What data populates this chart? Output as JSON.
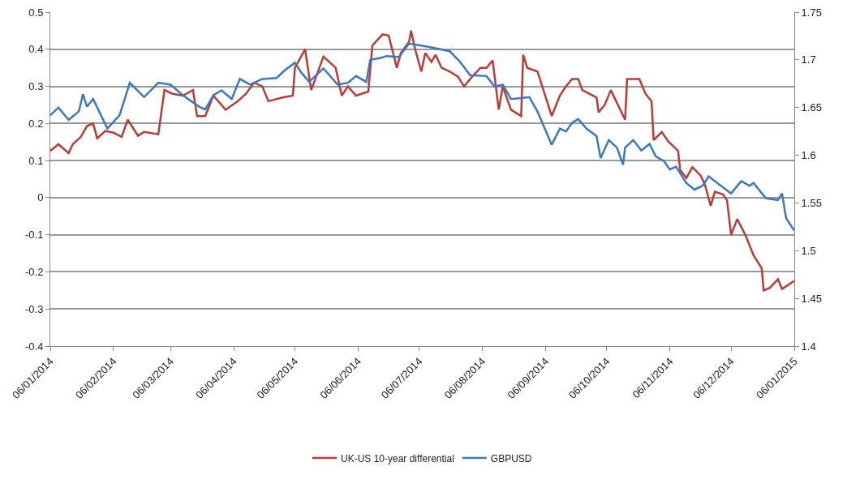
{
  "chart_data": {
    "type": "line",
    "xlim": [
      "2014-01-06",
      "2015-01-06"
    ],
    "xticks": [
      {
        "value": "2014-01-06",
        "label": "06/01/2014"
      },
      {
        "value": "2014-02-06",
        "label": "06/02/2014"
      },
      {
        "value": "2014-03-06",
        "label": "06/03/2014"
      },
      {
        "value": "2014-04-06",
        "label": "06/04/2014"
      },
      {
        "value": "2014-05-06",
        "label": "06/05/2014"
      },
      {
        "value": "2014-06-06",
        "label": "06/06/2014"
      },
      {
        "value": "2014-07-06",
        "label": "06/07/2014"
      },
      {
        "value": "2014-08-06",
        "label": "06/08/2014"
      },
      {
        "value": "2014-09-06",
        "label": "06/09/2014"
      },
      {
        "value": "2014-10-06",
        "label": "06/10/2014"
      },
      {
        "value": "2014-11-06",
        "label": "06/11/2014"
      },
      {
        "value": "2014-12-06",
        "label": "06/12/2014"
      },
      {
        "value": "2015-01-06",
        "label": "06/01/2015"
      }
    ],
    "ylim": [
      -0.4,
      0.5
    ],
    "yticks": [
      -0.4,
      -0.3,
      -0.2,
      -0.1,
      0,
      0.1,
      0.2,
      0.3,
      0.4,
      0.5
    ],
    "y2lim": [
      1.4,
      1.75
    ],
    "y2ticks": [
      1.4,
      1.45,
      1.5,
      1.55,
      1.6,
      1.65,
      1.7,
      1.75
    ],
    "grid": "y",
    "legend": "bottom",
    "marker": "none",
    "line_style": "solid",
    "series": [
      {
        "name": "UK-US 10-year differential",
        "color": "#be3a34",
        "x": [
          "2014-01-06",
          "2014-01-10",
          "2014-01-15",
          "2014-01-17",
          "2014-01-21",
          "2014-01-24",
          "2014-01-27",
          "2014-01-29",
          "2014-02-02",
          "2014-02-06",
          "2014-02-10",
          "2014-02-13",
          "2014-02-18",
          "2014-02-21",
          "2014-02-28",
          "2014-03-03",
          "2014-03-07",
          "2014-03-12",
          "2014-03-17",
          "2014-03-19",
          "2014-03-23",
          "2014-03-27",
          "2014-04-02",
          "2014-04-08",
          "2014-04-12",
          "2014-04-16",
          "2014-04-20",
          "2014-04-23",
          "2014-04-30",
          "2014-05-05",
          "2014-05-06",
          "2014-05-11",
          "2014-05-14",
          "2014-05-20",
          "2014-05-26",
          "2014-05-29",
          "2014-06-01",
          "2014-06-05",
          "2014-06-11",
          "2014-06-13",
          "2014-06-18",
          "2014-06-21",
          "2014-06-25",
          "2014-06-27",
          "2014-07-01",
          "2014-07-02",
          "2014-07-04",
          "2014-07-07",
          "2014-07-09",
          "2014-07-12",
          "2014-07-14",
          "2014-07-17",
          "2014-07-21",
          "2014-07-25",
          "2014-07-28",
          "2014-08-01",
          "2014-08-05",
          "2014-08-08",
          "2014-08-11",
          "2014-08-14",
          "2014-08-16",
          "2014-08-20",
          "2014-08-25",
          "2014-08-26",
          "2014-08-28",
          "2014-09-02",
          "2014-09-09",
          "2014-09-13",
          "2014-09-16",
          "2014-09-19",
          "2014-09-22",
          "2014-09-24",
          "2014-10-01",
          "2014-10-02",
          "2014-10-05",
          "2014-10-08",
          "2014-10-15",
          "2014-10-16",
          "2014-10-22",
          "2014-10-25",
          "2014-10-28",
          "2014-10-29",
          "2014-11-02",
          "2014-11-05",
          "2014-11-10",
          "2014-11-11",
          "2014-11-14",
          "2014-11-17",
          "2014-11-21",
          "2014-11-23",
          "2014-11-26",
          "2014-11-28",
          "2014-12-02",
          "2014-12-04",
          "2014-12-06",
          "2014-12-09",
          "2014-12-13",
          "2014-12-17",
          "2014-12-21",
          "2014-12-22",
          "2014-12-25",
          "2014-12-29",
          "2014-12-31",
          "2015-01-06"
        ],
        "values": [
          0.126,
          0.144,
          0.12,
          0.144,
          0.164,
          0.193,
          0.2,
          0.16,
          0.18,
          0.175,
          0.164,
          0.21,
          0.167,
          0.177,
          0.171,
          0.29,
          0.28,
          0.275,
          0.29,
          0.22,
          0.22,
          0.275,
          0.237,
          0.26,
          0.28,
          0.31,
          0.3,
          0.26,
          0.27,
          0.275,
          0.35,
          0.4,
          0.29,
          0.38,
          0.35,
          0.275,
          0.3,
          0.275,
          0.286,
          0.41,
          0.44,
          0.437,
          0.35,
          0.39,
          0.42,
          0.45,
          0.4,
          0.34,
          0.39,
          0.366,
          0.385,
          0.35,
          0.34,
          0.326,
          0.3,
          0.326,
          0.35,
          0.35,
          0.37,
          0.237,
          0.3,
          0.237,
          0.22,
          0.385,
          0.35,
          0.34,
          0.22,
          0.275,
          0.3,
          0.32,
          0.32,
          0.29,
          0.27,
          0.23,
          0.25,
          0.29,
          0.21,
          0.32,
          0.32,
          0.28,
          0.26,
          0.155,
          0.177,
          0.153,
          0.126,
          0.075,
          0.053,
          0.082,
          0.06,
          0.038,
          -0.022,
          0.016,
          0.009,
          -0.007,
          -0.1,
          -0.058,
          -0.1,
          -0.155,
          -0.19,
          -0.25,
          -0.243,
          -0.22,
          -0.246,
          -0.224
        ]
      },
      {
        "name": "GBPUSD",
        "color": "#3a78c2",
        "axis": "y2",
        "x": [
          "2014-01-06",
          "2014-01-10",
          "2014-01-15",
          "2014-01-20",
          "2014-01-22",
          "2014-01-24",
          "2014-01-27",
          "2014-02-03",
          "2014-02-09",
          "2014-02-14",
          "2014-02-21",
          "2014-02-28",
          "2014-03-06",
          "2014-03-12",
          "2014-03-20",
          "2014-03-23",
          "2014-03-27",
          "2014-03-31",
          "2014-04-05",
          "2014-04-09",
          "2014-04-14",
          "2014-04-20",
          "2014-04-27",
          "2014-05-01",
          "2014-05-06",
          "2014-05-09",
          "2014-05-13",
          "2014-05-20",
          "2014-05-27",
          "2014-06-01",
          "2014-06-05",
          "2014-06-10",
          "2014-06-12",
          "2014-06-17",
          "2014-06-20",
          "2014-06-26",
          "2014-07-01",
          "2014-07-07",
          "2014-07-12",
          "2014-07-21",
          "2014-07-26",
          "2014-07-31",
          "2014-08-08",
          "2014-08-12",
          "2014-08-16",
          "2014-08-20",
          "2014-08-25",
          "2014-08-29",
          "2014-09-02",
          "2014-09-09",
          "2014-09-13",
          "2014-09-16",
          "2014-09-19",
          "2014-09-22",
          "2014-09-26",
          "2014-10-01",
          "2014-10-03",
          "2014-10-07",
          "2014-10-11",
          "2014-10-14",
          "2014-10-15",
          "2014-10-19",
          "2014-10-23",
          "2014-10-27",
          "2014-10-30",
          "2014-11-03",
          "2014-11-06",
          "2014-11-09",
          "2014-11-14",
          "2014-11-18",
          "2014-11-22",
          "2014-11-25",
          "2014-12-01",
          "2014-12-06",
          "2014-12-11",
          "2014-12-15",
          "2014-12-17",
          "2014-12-23",
          "2014-12-29",
          "2014-12-31",
          "2015-01-02",
          "2015-01-06"
        ],
        "values": [
          1.642,
          1.65,
          1.637,
          1.646,
          1.664,
          1.651,
          1.659,
          1.628,
          1.642,
          1.676,
          1.661,
          1.676,
          1.674,
          1.663,
          1.651,
          1.648,
          1.663,
          1.668,
          1.659,
          1.68,
          1.674,
          1.68,
          1.681,
          1.689,
          1.697,
          1.687,
          1.677,
          1.691,
          1.674,
          1.676,
          1.683,
          1.677,
          1.7,
          1.702,
          1.704,
          1.703,
          1.717,
          1.715,
          1.713,
          1.709,
          1.698,
          1.684,
          1.683,
          1.672,
          1.674,
          1.659,
          1.66,
          1.661,
          1.646,
          1.611,
          1.628,
          1.625,
          1.634,
          1.638,
          1.628,
          1.62,
          1.597,
          1.616,
          1.608,
          1.59,
          1.608,
          1.616,
          1.605,
          1.612,
          1.599,
          1.594,
          1.585,
          1.588,
          1.571,
          1.564,
          1.568,
          1.578,
          1.568,
          1.56,
          1.573,
          1.568,
          1.571,
          1.555,
          1.553,
          1.56,
          1.534,
          1.521
        ]
      }
    ]
  }
}
